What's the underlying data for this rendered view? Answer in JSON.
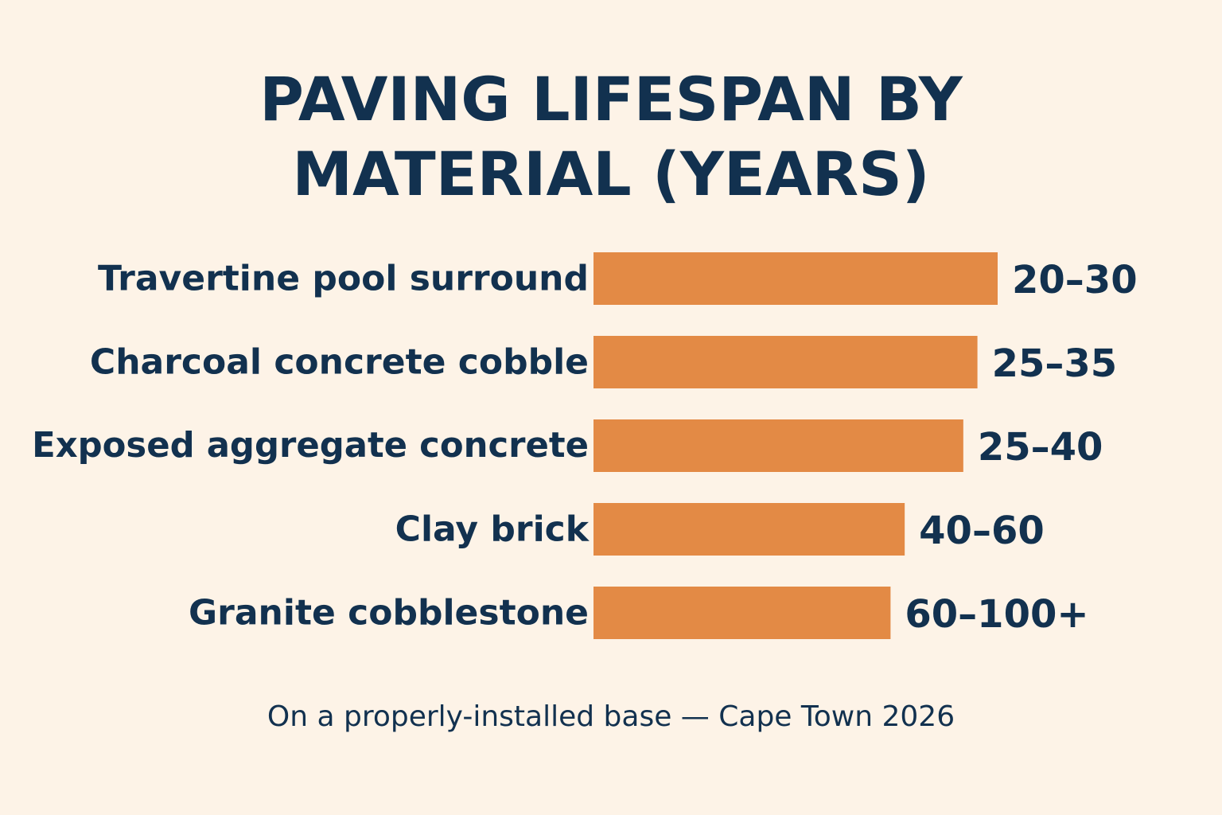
{
  "colors": {
    "background": "#fdf3e7",
    "text": "#12314f",
    "bar": "#e38a45"
  },
  "chart_data": {
    "type": "bar",
    "orientation": "horizontal",
    "title_lines": [
      "PAVING LIFESPAN BY",
      "MATERIAL (YEARS)"
    ],
    "categories": [
      "Travertine pool surround",
      "Charcoal concrete cobble",
      "Exposed aggregate concrete",
      "Clay brick",
      "Granite cobblestone"
    ],
    "value_labels": [
      "20–30",
      "25–35",
      "25–40",
      "40–60",
      "60–100+"
    ],
    "values": [
      20,
      25,
      25,
      40,
      60
    ],
    "bar_extent_relative": [
      1.0,
      0.95,
      0.915,
      0.77,
      0.735
    ],
    "note": "Bar lengths are not proportional to the printed ranges; they decrease from top to bottom as drawn.",
    "footnote": "On a properly-installed base — Cape Town 2026",
    "grid": false,
    "legend": "none"
  }
}
